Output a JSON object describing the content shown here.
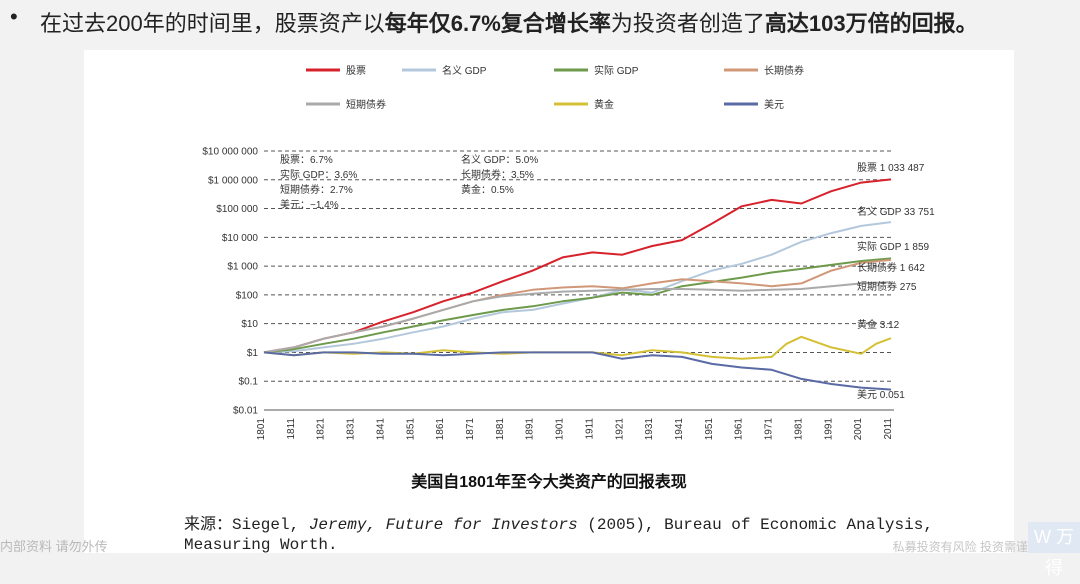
{
  "headline": {
    "bullet": "•",
    "part1": "在过去200年的时间里，股票资产以",
    "bold1": "每年仅6.7%复合增长率",
    "part2": "为投资者创造了",
    "bold2": "高达103万倍的回报。"
  },
  "chart_data": {
    "type": "line",
    "title": "美国自1801年至今大类资产的回报表现",
    "xlabel": "",
    "ylabel": "",
    "scale": "log",
    "xlim": [
      1801,
      2012
    ],
    "ylim": [
      0.01,
      10000000
    ],
    "grid": "dashed horizontal",
    "legend_position": "top",
    "x_ticks": [
      "1801",
      "1811",
      "1821",
      "1831",
      "1841",
      "1851",
      "1861",
      "1871",
      "1881",
      "1891",
      "1901",
      "1911",
      "1921",
      "1931",
      "1941",
      "1951",
      "1961",
      "1971",
      "1981",
      "1991",
      "2001",
      "2011"
    ],
    "y_ticks": [
      {
        "value": 0.01,
        "label": "$0.01"
      },
      {
        "value": 0.1,
        "label": "$0.1"
      },
      {
        "value": 1,
        "label": "$1"
      },
      {
        "value": 10,
        "label": "$10"
      },
      {
        "value": 100,
        "label": "$100"
      },
      {
        "value": 1000,
        "label": "$1 000"
      },
      {
        "value": 10000,
        "label": "$10 000"
      },
      {
        "value": 100000,
        "label": "$100 000"
      },
      {
        "value": 1000000,
        "label": "$1 000 000"
      },
      {
        "value": 10000000,
        "label": "$10 000 000"
      }
    ],
    "annotations_left": [
      "股票：6.7%",
      "实际 GDP：3.6%",
      "短期债券：2.7%",
      "美元：−1.4%"
    ],
    "annotations_mid": [
      "名义 GDP：5.0%",
      "长期债券：3.5%",
      "黄金：0.5%"
    ],
    "series": [
      {
        "name": "股票",
        "color": "#d7212b",
        "end_label": "股票 1 033 487",
        "x": [
          1801,
          1811,
          1821,
          1831,
          1841,
          1851,
          1861,
          1871,
          1881,
          1891,
          1901,
          1911,
          1921,
          1931,
          1941,
          1951,
          1961,
          1971,
          1981,
          1991,
          2001,
          2011
        ],
        "y": [
          1,
          1.5,
          3,
          5,
          12,
          25,
          60,
          120,
          300,
          700,
          2000,
          3000,
          2500,
          5000,
          8000,
          30000,
          120000,
          200000,
          150000,
          400000,
          800000,
          1033487
        ]
      },
      {
        "name": "名义 GDP",
        "color": "#b3c8dc",
        "end_label": "名义 GDP 33 751",
        "x": [
          1801,
          1811,
          1821,
          1831,
          1841,
          1851,
          1861,
          1871,
          1881,
          1891,
          1901,
          1911,
          1921,
          1931,
          1941,
          1951,
          1961,
          1971,
          1981,
          1991,
          2001,
          2011
        ],
        "y": [
          1,
          1.1,
          1.5,
          2,
          3,
          5,
          8,
          15,
          25,
          30,
          50,
          80,
          150,
          120,
          300,
          700,
          1200,
          2500,
          7000,
          14000,
          25000,
          33751
        ]
      },
      {
        "name": "实际 GDP",
        "color": "#6e9a4c",
        "end_label": "实际 GDP 1 859",
        "x": [
          1801,
          1811,
          1821,
          1831,
          1841,
          1851,
          1861,
          1871,
          1881,
          1891,
          1901,
          1911,
          1921,
          1931,
          1941,
          1951,
          1961,
          1971,
          1981,
          1991,
          2001,
          2011
        ],
        "y": [
          1,
          1.3,
          2,
          3,
          5,
          8,
          13,
          20,
          30,
          40,
          60,
          80,
          120,
          100,
          200,
          280,
          400,
          600,
          800,
          1100,
          1500,
          1859
        ]
      },
      {
        "name": "长期债券",
        "color": "#d09878",
        "end_label": "长期债券 1 642",
        "x": [
          1801,
          1811,
          1821,
          1831,
          1841,
          1851,
          1861,
          1871,
          1881,
          1891,
          1901,
          1911,
          1921,
          1931,
          1941,
          1951,
          1961,
          1971,
          1981,
          1991,
          2001,
          2011
        ],
        "y": [
          1,
          1.5,
          3,
          5,
          8,
          15,
          30,
          60,
          100,
          150,
          180,
          200,
          170,
          250,
          350,
          300,
          250,
          200,
          250,
          700,
          1300,
          1642
        ]
      },
      {
        "name": "短期债券",
        "color": "#aaaaaa",
        "end_label": "短期债券 275",
        "x": [
          1801,
          1811,
          1821,
          1831,
          1841,
          1851,
          1861,
          1871,
          1881,
          1891,
          1901,
          1911,
          1921,
          1931,
          1941,
          1951,
          1961,
          1971,
          1981,
          1991,
          2001,
          2011
        ],
        "y": [
          1,
          1.5,
          3,
          5,
          8,
          15,
          30,
          60,
          90,
          110,
          130,
          140,
          150,
          160,
          160,
          150,
          140,
          150,
          160,
          200,
          250,
          275
        ]
      },
      {
        "name": "黄金",
        "color": "#d4c034",
        "end_label": "黄金 3.12",
        "x": [
          1801,
          1811,
          1821,
          1831,
          1841,
          1851,
          1861,
          1871,
          1881,
          1891,
          1901,
          1911,
          1921,
          1931,
          1941,
          1951,
          1961,
          1971,
          1976,
          1981,
          1991,
          2001,
          2006,
          2011
        ],
        "y": [
          1,
          0.8,
          1,
          0.9,
          1,
          0.9,
          1.2,
          1,
          0.9,
          1,
          1,
          1,
          0.8,
          1.2,
          1,
          0.7,
          0.6,
          0.7,
          2,
          3.5,
          1.5,
          0.9,
          2,
          3.12
        ]
      },
      {
        "name": "美元",
        "color": "#5a6aa4",
        "end_label": "美元 0.051",
        "x": [
          1801,
          1811,
          1821,
          1831,
          1841,
          1851,
          1861,
          1871,
          1881,
          1891,
          1901,
          1911,
          1921,
          1931,
          1941,
          1951,
          1961,
          1971,
          1981,
          1991,
          2001,
          2011
        ],
        "y": [
          1,
          0.8,
          1,
          1,
          0.9,
          0.9,
          0.8,
          0.9,
          1,
          1,
          1,
          1,
          0.6,
          0.8,
          0.7,
          0.4,
          0.3,
          0.25,
          0.12,
          0.08,
          0.06,
          0.051
        ]
      }
    ]
  },
  "source_text": {
    "prefix": "来源：Siegel, ",
    "italic": "Jeremy, Future for Investors",
    "suffix": " (2005), Bureau of Economic Analysis,",
    "line2": "Measuring Worth."
  },
  "watermarks": {
    "left": "内部资料 请勿外传",
    "right": "私募投资有风险 投资需谨慎",
    "logo": "W 万得"
  }
}
